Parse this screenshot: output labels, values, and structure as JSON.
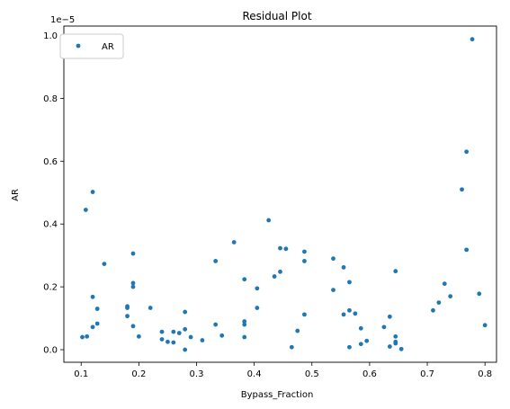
{
  "chart_data": {
    "type": "scatter",
    "title": "Residual Plot",
    "xlabel": "Bypass_Fraction",
    "ylabel": "AR",
    "y_offset_label": "1e−5",
    "xlim": [
      0.07,
      0.82
    ],
    "ylim": [
      -0.04,
      1.03
    ],
    "xticks": [
      0.1,
      0.2,
      0.3,
      0.4,
      0.5,
      0.6,
      0.7,
      0.8
    ],
    "xtick_labels": [
      "0.1",
      "0.2",
      "0.3",
      "0.4",
      "0.5",
      "0.6",
      "0.7",
      "0.8"
    ],
    "yticks": [
      0.0,
      0.2,
      0.4,
      0.6,
      0.8,
      1.0
    ],
    "ytick_labels": [
      "0.0",
      "0.2",
      "0.4",
      "0.6",
      "0.8",
      "1.0"
    ],
    "grid": false,
    "legend": {
      "placement": "top-left",
      "entries": [
        "AR"
      ]
    },
    "colors": {
      "series": "#1f77b4"
    },
    "series": [
      {
        "name": "AR",
        "points": [
          [
            0.102,
            0.04
          ],
          [
            0.108,
            0.445
          ],
          [
            0.11,
            0.042
          ],
          [
            0.12,
            0.502
          ],
          [
            0.12,
            0.168
          ],
          [
            0.12,
            0.072
          ],
          [
            0.128,
            0.13
          ],
          [
            0.128,
            0.083
          ],
          [
            0.14,
            0.273
          ],
          [
            0.18,
            0.138
          ],
          [
            0.18,
            0.133
          ],
          [
            0.18,
            0.107
          ],
          [
            0.19,
            0.306
          ],
          [
            0.19,
            0.212
          ],
          [
            0.19,
            0.2
          ],
          [
            0.19,
            0.075
          ],
          [
            0.2,
            0.042
          ],
          [
            0.22,
            0.133
          ],
          [
            0.24,
            0.057
          ],
          [
            0.24,
            0.033
          ],
          [
            0.25,
            0.025
          ],
          [
            0.26,
            0.057
          ],
          [
            0.26,
            0.023
          ],
          [
            0.27,
            0.053
          ],
          [
            0.28,
            0.12
          ],
          [
            0.28,
            0.065
          ],
          [
            0.28,
            0.0
          ],
          [
            0.29,
            0.04
          ],
          [
            0.31,
            0.03
          ],
          [
            0.333,
            0.282
          ],
          [
            0.333,
            0.08
          ],
          [
            0.344,
            0.045
          ],
          [
            0.365,
            0.342
          ],
          [
            0.383,
            0.224
          ],
          [
            0.383,
            0.09
          ],
          [
            0.383,
            0.08
          ],
          [
            0.383,
            0.04
          ],
          [
            0.405,
            0.195
          ],
          [
            0.405,
            0.133
          ],
          [
            0.425,
            0.412
          ],
          [
            0.435,
            0.233
          ],
          [
            0.445,
            0.323
          ],
          [
            0.445,
            0.248
          ],
          [
            0.455,
            0.321
          ],
          [
            0.465,
            0.008
          ],
          [
            0.475,
            0.06
          ],
          [
            0.487,
            0.312
          ],
          [
            0.487,
            0.282
          ],
          [
            0.487,
            0.112
          ],
          [
            0.537,
            0.29
          ],
          [
            0.537,
            0.19
          ],
          [
            0.555,
            0.262
          ],
          [
            0.555,
            0.112
          ],
          [
            0.565,
            0.215
          ],
          [
            0.565,
            0.125
          ],
          [
            0.565,
            0.008
          ],
          [
            0.575,
            0.115
          ],
          [
            0.585,
            0.068
          ],
          [
            0.585,
            0.018
          ],
          [
            0.595,
            0.028
          ],
          [
            0.625,
            0.072
          ],
          [
            0.635,
            0.105
          ],
          [
            0.635,
            0.01
          ],
          [
            0.645,
            0.25
          ],
          [
            0.645,
            0.042
          ],
          [
            0.645,
            0.025
          ],
          [
            0.645,
            0.02
          ],
          [
            0.655,
            0.002
          ],
          [
            0.71,
            0.125
          ],
          [
            0.72,
            0.15
          ],
          [
            0.73,
            0.21
          ],
          [
            0.74,
            0.17
          ],
          [
            0.76,
            0.51
          ],
          [
            0.768,
            0.63
          ],
          [
            0.768,
            0.318
          ],
          [
            0.778,
            0.988
          ],
          [
            0.79,
            0.178
          ],
          [
            0.8,
            0.078
          ]
        ]
      }
    ]
  }
}
